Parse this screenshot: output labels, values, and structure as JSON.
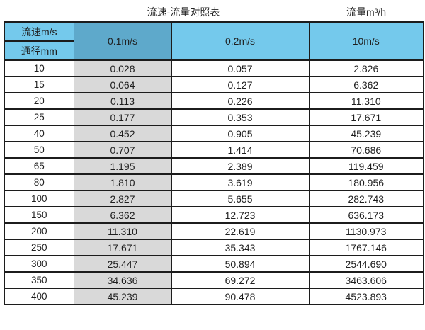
{
  "page": {
    "title_left": "流速-流量对照表",
    "title_right": "流量m³/h"
  },
  "table": {
    "corner": {
      "top": "流速m/s",
      "bottom": "通径mm"
    },
    "velocity_columns": [
      "0.1m/s",
      "0.2m/s",
      "10m/s"
    ],
    "rows": [
      {
        "dn": "10",
        "values": [
          "0.028",
          "0.057",
          "2.826"
        ]
      },
      {
        "dn": "15",
        "values": [
          "0.064",
          "0.127",
          "6.362"
        ]
      },
      {
        "dn": "20",
        "values": [
          "0.113",
          "0.226",
          "11.310"
        ]
      },
      {
        "dn": "25",
        "values": [
          "0.177",
          "0.353",
          "17.671"
        ]
      },
      {
        "dn": "40",
        "values": [
          "0.452",
          "0.905",
          "45.239"
        ]
      },
      {
        "dn": "50",
        "values": [
          "0.707",
          "1.414",
          "70.686"
        ]
      },
      {
        "dn": "65",
        "values": [
          "1.195",
          "2.389",
          "119.459"
        ]
      },
      {
        "dn": "80",
        "values": [
          "1.810",
          "3.619",
          "180.956"
        ]
      },
      {
        "dn": "100",
        "values": [
          "2.827",
          "5.655",
          "282.743"
        ]
      },
      {
        "dn": "150",
        "values": [
          "6.362",
          "12.723",
          "636.173"
        ]
      },
      {
        "dn": "200",
        "values": [
          "11.310",
          "22.619",
          "1130.973"
        ]
      },
      {
        "dn": "250",
        "values": [
          "17.671",
          "35.343",
          "1767.146"
        ]
      },
      {
        "dn": "300",
        "values": [
          "25.447",
          "50.894",
          "2544.690"
        ]
      },
      {
        "dn": "350",
        "values": [
          "34.636",
          "69.272",
          "3463.606"
        ]
      },
      {
        "dn": "400",
        "values": [
          "45.239",
          "90.478",
          "4523.893"
        ]
      }
    ]
  },
  "colors": {
    "header_cyan": "#74c9ec",
    "header_dark_blue": "#5ea9cb",
    "highlight_column_gray": "#d9d9d9",
    "border": "#1c1c1c",
    "text": "#1f1f1f"
  },
  "chart_data": {
    "type": "table",
    "title": "流速-流量对照表",
    "right_unit_label": "流量m³/h",
    "columns": [
      "通径mm",
      "0.1m/s",
      "0.2m/s",
      "10m/s"
    ],
    "rows": [
      [
        10,
        0.028,
        0.057,
        2.826
      ],
      [
        15,
        0.064,
        0.127,
        6.362
      ],
      [
        20,
        0.113,
        0.226,
        11.31
      ],
      [
        25,
        0.177,
        0.353,
        17.671
      ],
      [
        40,
        0.452,
        0.905,
        45.239
      ],
      [
        50,
        0.707,
        1.414,
        70.686
      ],
      [
        65,
        1.195,
        2.389,
        119.459
      ],
      [
        80,
        1.81,
        3.619,
        180.956
      ],
      [
        100,
        2.827,
        5.655,
        282.743
      ],
      [
        150,
        6.362,
        12.723,
        636.173
      ],
      [
        200,
        11.31,
        22.619,
        1130.973
      ],
      [
        250,
        17.671,
        35.343,
        1767.146
      ],
      [
        300,
        25.447,
        50.894,
        2544.69
      ],
      [
        350,
        34.636,
        69.272,
        3463.606
      ],
      [
        400,
        45.239,
        90.478,
        4523.893
      ]
    ]
  }
}
